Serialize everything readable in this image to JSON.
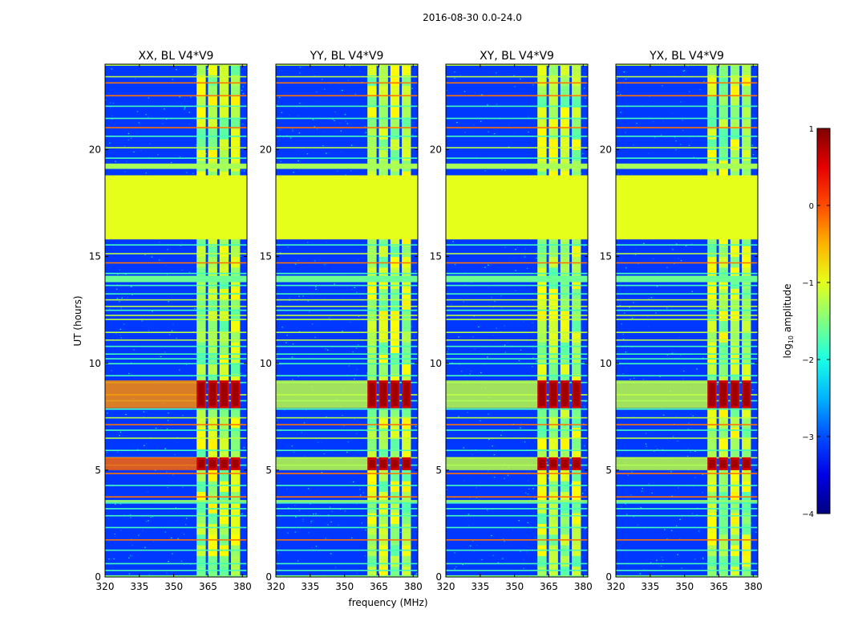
{
  "suptitle": "2016-08-30 0.0-24.0",
  "chart_data": {
    "type": "heatmap",
    "xlabel": "frequency (MHz)",
    "ylabel": "UT (hours)",
    "xlim": [
      320,
      382
    ],
    "ylim": [
      0,
      24
    ],
    "xticks": [
      320,
      335,
      350,
      365,
      380
    ],
    "yticks": [
      0,
      5,
      10,
      15,
      20
    ],
    "panels": [
      {
        "title": "XX, BL V4*V9"
      },
      {
        "title": "YY, BL V4*V9"
      },
      {
        "title": "XY, BL V4*V9"
      },
      {
        "title": "YX, BL V4*V9"
      }
    ],
    "colorbar": {
      "label": "log10 amplitude",
      "label_main": "log",
      "label_sub": "10",
      "label_rest": " amplitude",
      "range": [
        -4,
        1
      ],
      "ticks": [
        {
          "value": 1,
          "label": "1"
        },
        {
          "value": 0,
          "label": "0"
        },
        {
          "value": -1,
          "label": "−1"
        },
        {
          "value": -2,
          "label": "−2"
        },
        {
          "value": -3,
          "label": "−3"
        },
        {
          "value": -4,
          "label": "−4"
        }
      ]
    },
    "features": {
      "background_level": -3.1,
      "flagged_block": {
        "ut_start": 15.8,
        "ut_end": 18.8,
        "value": -1.0
      },
      "signal_band_mhz": [
        360,
        380
      ],
      "signal_subband_edges_mhz": [
        360,
        364,
        365,
        369,
        370,
        374,
        375,
        379
      ],
      "strong_bursts_ut": [
        [
          7.9,
          9.2
        ],
        [
          5.0,
          5.6
        ]
      ]
    }
  }
}
